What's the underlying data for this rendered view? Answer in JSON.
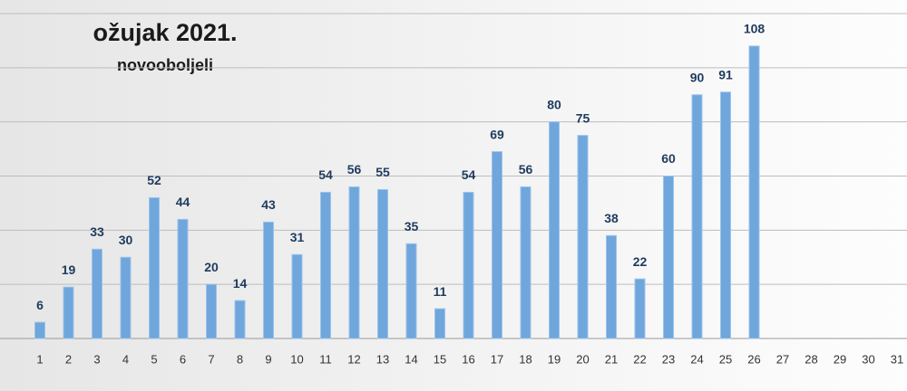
{
  "chart_data": {
    "type": "bar",
    "title": "ožujak 2021.",
    "subtitle": "novooboljeli",
    "categories": [
      1,
      2,
      3,
      4,
      5,
      6,
      7,
      8,
      9,
      10,
      11,
      12,
      13,
      14,
      15,
      16,
      17,
      18,
      19,
      20,
      21,
      22,
      23,
      24,
      25,
      26,
      27,
      28,
      29,
      30,
      31
    ],
    "values": [
      6,
      19,
      33,
      30,
      52,
      44,
      20,
      14,
      43,
      31,
      54,
      56,
      55,
      35,
      11,
      54,
      69,
      56,
      80,
      75,
      38,
      22,
      60,
      90,
      91,
      108,
      null,
      null,
      null,
      null,
      null
    ],
    "color": "#6fa6dc",
    "ylim": [
      0,
      120
    ],
    "yticks": [
      0,
      20,
      40,
      60,
      80,
      100,
      120
    ],
    "grid": true
  }
}
